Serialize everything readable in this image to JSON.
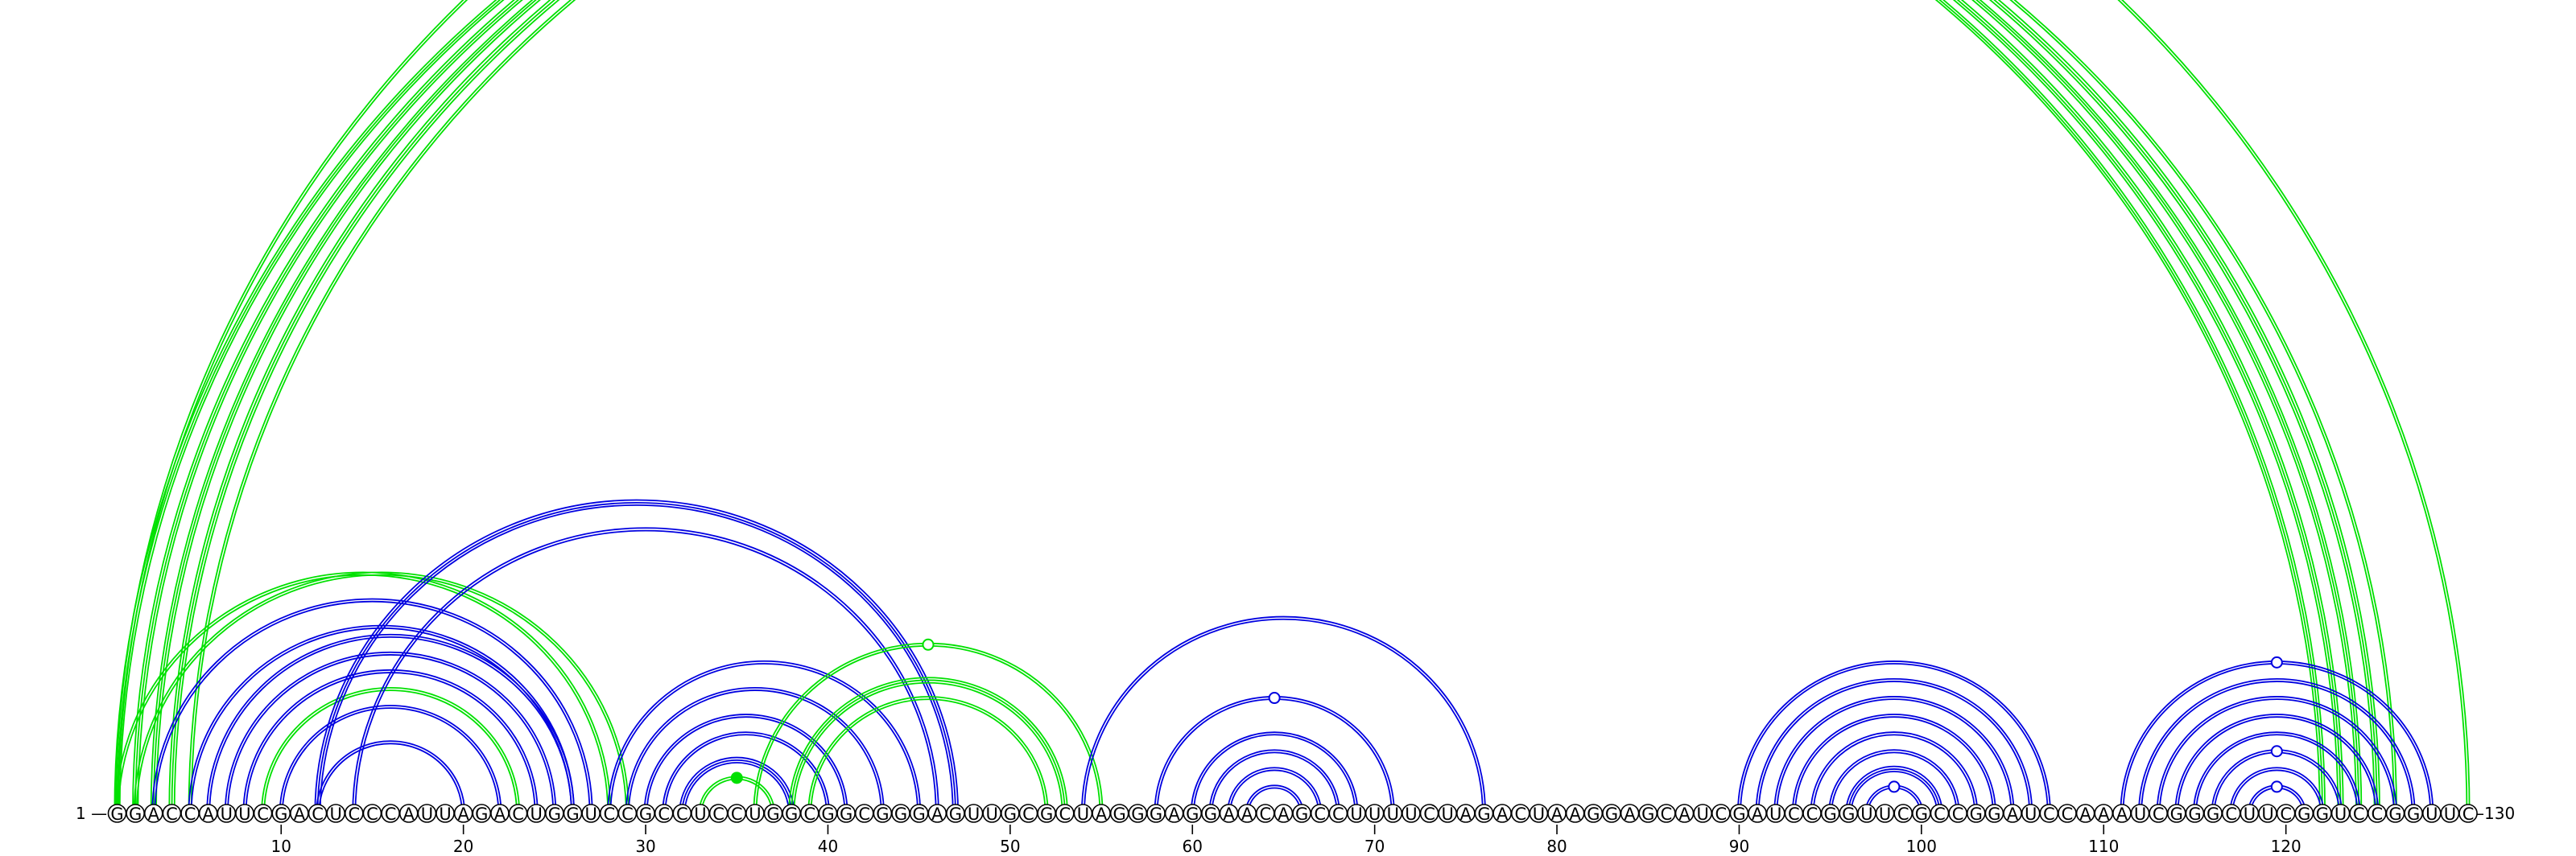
{
  "sequence": "GGACCAUUCGACUCCCAUUAGACUGGUCCGCCUCCUGGCGGCGGGAGUUGCGCUAGGGAGGAACAGCCUUUUCUAGACUAAGGAGCAUCGAUCCGGUUCGCCGGAUCCAAAUCGGGCUUCGGUCCGGUUC",
  "start_label": "1 —",
  "end_label": "—130",
  "ticks": [
    10,
    20,
    30,
    40,
    50,
    60,
    70,
    80,
    90,
    100,
    110,
    120
  ],
  "colors": {
    "green": "#00e000",
    "blue": "#0000e0"
  },
  "arcs": [
    {
      "i": 1,
      "j": 122,
      "color": "green",
      "lines": 3
    },
    {
      "i": 2,
      "j": 123,
      "color": "green",
      "lines": 3
    },
    {
      "i": 3,
      "j": 124,
      "color": "green",
      "lines": 3
    },
    {
      "i": 4,
      "j": 125,
      "color": "green",
      "lines": 3
    },
    {
      "i": 5,
      "j": 126,
      "color": "green",
      "lines": 2
    },
    {
      "i": 1,
      "j": 130,
      "color": "green",
      "lines": 2,
      "marker": "open"
    },
    {
      "i": 1,
      "j": 28,
      "color": "green",
      "lines": 2
    },
    {
      "i": 2,
      "j": 29,
      "color": "green",
      "lines": 2
    },
    {
      "i": 3,
      "j": 27,
      "color": "blue",
      "lines": 2
    },
    {
      "i": 5,
      "j": 26,
      "color": "blue",
      "lines": 2
    },
    {
      "i": 6,
      "j": 26,
      "color": "blue",
      "lines": 2
    },
    {
      "i": 7,
      "j": 25,
      "color": "blue",
      "lines": 2
    },
    {
      "i": 8,
      "j": 24,
      "color": "blue",
      "lines": 2
    },
    {
      "i": 9,
      "j": 23,
      "color": "green",
      "lines": 2
    },
    {
      "i": 10,
      "j": 22,
      "color": "blue",
      "lines": 2
    },
    {
      "i": 12,
      "j": 20,
      "color": "blue",
      "lines": 2
    },
    {
      "i": 12,
      "j": 47,
      "color": "blue",
      "lines": 3
    },
    {
      "i": 14,
      "j": 46,
      "color": "blue",
      "lines": 2
    },
    {
      "i": 28,
      "j": 45,
      "color": "blue",
      "lines": 2
    },
    {
      "i": 29,
      "j": 43,
      "color": "blue",
      "lines": 2
    },
    {
      "i": 30,
      "j": 41,
      "color": "blue",
      "lines": 2
    },
    {
      "i": 31,
      "j": 40,
      "color": "blue",
      "lines": 2
    },
    {
      "i": 32,
      "j": 38,
      "color": "blue",
      "lines": 3
    },
    {
      "i": 33,
      "j": 37,
      "color": "green",
      "lines": 2,
      "marker": "filled"
    },
    {
      "i": 36,
      "j": 55,
      "color": "green",
      "lines": 2,
      "marker": "open"
    },
    {
      "i": 38,
      "j": 53,
      "color": "green",
      "lines": 3
    },
    {
      "i": 39,
      "j": 52,
      "color": "green",
      "lines": 2
    },
    {
      "i": 54,
      "j": 76,
      "color": "blue",
      "lines": 2
    },
    {
      "i": 58,
      "j": 71,
      "color": "blue",
      "lines": 2,
      "marker": "open"
    },
    {
      "i": 60,
      "j": 69,
      "color": "blue",
      "lines": 2
    },
    {
      "i": 61,
      "j": 68,
      "color": "blue",
      "lines": 2
    },
    {
      "i": 62,
      "j": 67,
      "color": "blue",
      "lines": 2
    },
    {
      "i": 63,
      "j": 66,
      "color": "blue",
      "lines": 2
    },
    {
      "i": 90,
      "j": 107,
      "color": "blue",
      "lines": 2
    },
    {
      "i": 91,
      "j": 106,
      "color": "blue",
      "lines": 2
    },
    {
      "i": 92,
      "j": 105,
      "color": "blue",
      "lines": 2
    },
    {
      "i": 93,
      "j": 104,
      "color": "blue",
      "lines": 2
    },
    {
      "i": 94,
      "j": 103,
      "color": "blue",
      "lines": 2
    },
    {
      "i": 95,
      "j": 102,
      "color": "blue",
      "lines": 2
    },
    {
      "i": 96,
      "j": 101,
      "color": "blue",
      "lines": 3
    },
    {
      "i": 97,
      "j": 100,
      "color": "blue",
      "lines": 2,
      "marker": "open"
    },
    {
      "i": 111,
      "j": 128,
      "color": "blue",
      "lines": 2,
      "marker": "open"
    },
    {
      "i": 112,
      "j": 127,
      "color": "blue",
      "lines": 2
    },
    {
      "i": 113,
      "j": 126,
      "color": "blue",
      "lines": 2
    },
    {
      "i": 114,
      "j": 125,
      "color": "blue",
      "lines": 2
    },
    {
      "i": 115,
      "j": 124,
      "color": "blue",
      "lines": 2
    },
    {
      "i": 116,
      "j": 123,
      "color": "blue",
      "lines": 2,
      "marker": "open"
    },
    {
      "i": 117,
      "j": 122,
      "color": "blue",
      "lines": 2
    },
    {
      "i": 118,
      "j": 121,
      "color": "blue",
      "lines": 2,
      "marker": "open"
    }
  ]
}
